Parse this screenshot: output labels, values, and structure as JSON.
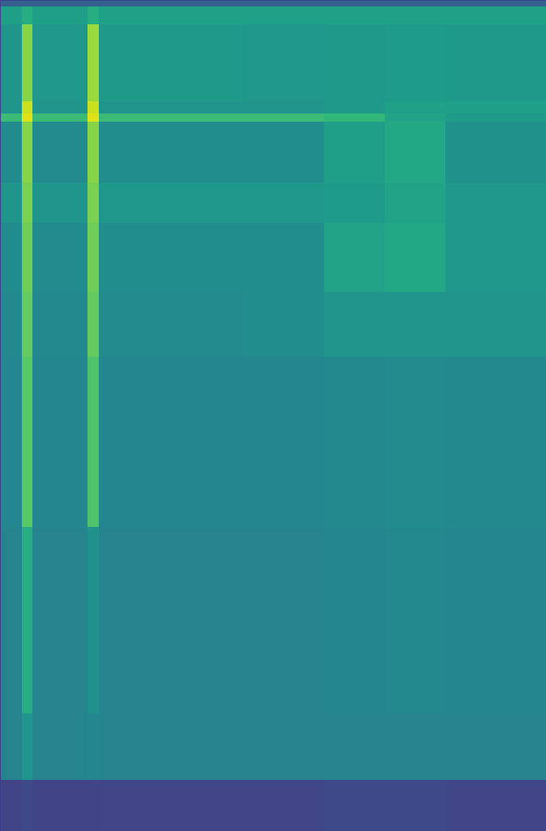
{
  "chart_data": {
    "type": "heatmap",
    "x_edges": [
      0,
      27,
      40,
      108,
      122,
      300,
      400,
      475,
      550,
      674
    ],
    "y_edges": [
      1025,
      1017,
      995,
      900,
      885,
      875,
      800,
      750,
      665,
      585,
      375,
      145,
      63,
      0
    ],
    "cells": [
      [
        0.3,
        0.3,
        0.3,
        0.3,
        0.3,
        0.3,
        0.3,
        0.3,
        0.3
      ],
      [
        0.56,
        0.62,
        0.56,
        0.62,
        0.57,
        0.57,
        0.57,
        0.57,
        0.57
      ],
      [
        0.52,
        0.82,
        0.53,
        0.85,
        0.54,
        0.53,
        0.54,
        0.55,
        0.54
      ],
      [
        0.52,
        0.92,
        0.52,
        0.92,
        0.52,
        0.52,
        0.54,
        0.57,
        0.56
      ],
      [
        0.68,
        0.95,
        0.68,
        0.95,
        0.68,
        0.68,
        0.66,
        0.58,
        0.55
      ],
      [
        0.48,
        0.82,
        0.48,
        0.82,
        0.49,
        0.49,
        0.56,
        0.6,
        0.5
      ],
      [
        0.52,
        0.8,
        0.52,
        0.8,
        0.53,
        0.53,
        0.55,
        0.58,
        0.53
      ],
      [
        0.48,
        0.78,
        0.48,
        0.78,
        0.49,
        0.49,
        0.58,
        0.6,
        0.53
      ],
      [
        0.47,
        0.76,
        0.47,
        0.76,
        0.48,
        0.49,
        0.52,
        0.52,
        0.52
      ],
      [
        0.46,
        0.74,
        0.46,
        0.72,
        0.46,
        0.46,
        0.47,
        0.48,
        0.47
      ],
      [
        0.45,
        0.62,
        0.45,
        0.5,
        0.45,
        0.45,
        0.46,
        0.47,
        0.46
      ],
      [
        0.45,
        0.52,
        0.45,
        0.46,
        0.45,
        0.45,
        0.45,
        0.45,
        0.45
      ],
      [
        0.2,
        0.22,
        0.2,
        0.2,
        0.21,
        0.21,
        0.22,
        0.22,
        0.21
      ]
    ],
    "xlim": [
      0,
      674
    ],
    "ylim": [
      0,
      1025
    ],
    "xticks": [],
    "yticks": [],
    "tick_labels": false,
    "color": "viridis",
    "clim": [
      0,
      1
    ]
  }
}
